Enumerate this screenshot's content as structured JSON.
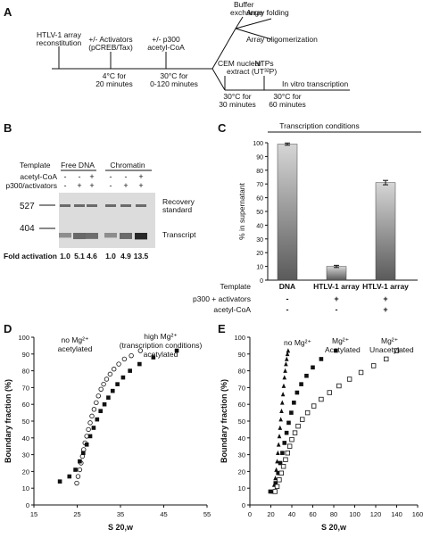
{
  "panel_a": {
    "letter": "A",
    "step_reconstitution": [
      "HTLV-1 array",
      "reconstitution"
    ],
    "step_activators": [
      "+/- Activators",
      "(pCREB/Tax)"
    ],
    "step_p300": [
      "+/- p300",
      "acetyl-CoA"
    ],
    "incubation_1": [
      "4°C for",
      "20 minutes"
    ],
    "incubation_2": [
      "30°C for",
      "0-120 minutes"
    ],
    "branch_buffer": [
      "Buffer",
      "exchange"
    ],
    "branch_folding": "Array folding",
    "branch_oligomerization": "Array oligomerization",
    "branch_cem": [
      "CEM nuclear",
      "extract"
    ],
    "branch_ntps": [
      "NTPs",
      "(UT³²P)"
    ],
    "incubation_3": [
      "30°C for",
      "30 minutes"
    ],
    "incubation_4": [
      "30°C for",
      "60 minutes"
    ],
    "branch_transcription": "In vitro transcription"
  },
  "panel_b": {
    "letter": "B",
    "template_label": "Template",
    "group_free_dna": "Free DNA",
    "group_chromatin": "Chromatin",
    "row_acetyl": "acetyl-CoA",
    "row_p300": "p300/activators",
    "acetyl_signs": [
      "-",
      "-",
      "+",
      "-",
      "-",
      "+"
    ],
    "p300_signs": [
      "-",
      "+",
      "+",
      "-",
      "+",
      "+"
    ],
    "marker_527": "527",
    "marker_404": "404",
    "label_recovery": [
      "Recovery",
      "standard"
    ],
    "label_transcript": "Transcript",
    "fold_label": "Fold activation",
    "fold_values": [
      "1.0",
      "5.1",
      "4.6",
      "1.0",
      "4.9",
      "13.5"
    ]
  },
  "panel_c": {
    "letter": "C",
    "header": "Transcription conditions",
    "template_label": "Template",
    "p300_label": "p300 + activators",
    "acetyl_label": "acetyl-CoA",
    "row_p300": [
      "-",
      "+",
      "+"
    ],
    "row_acetyl": [
      "-",
      "-",
      "+"
    ]
  },
  "panel_d": {
    "letter": "D",
    "annot_left": [
      "no Mg²⁺",
      "acetylated"
    ],
    "annot_right": [
      "high Mg²⁺",
      "(transcription conditions)",
      "acetylated"
    ]
  },
  "panel_e": {
    "letter": "E",
    "annot_nomg": "no Mg²⁺",
    "annot_acet": [
      "Mg²⁺",
      "Acetylated"
    ],
    "annot_unacet": [
      "Mg²⁺",
      "Unacetylated"
    ]
  },
  "chart_data": [
    {
      "type": "bar",
      "panel": "C",
      "categories": [
        "DNA",
        "HTLV-1 array",
        "HTLV-1 array"
      ],
      "values": [
        99,
        10,
        71
      ],
      "errors": [
        0.8,
        0.8,
        1.6
      ],
      "ylabel": "% in supernatant",
      "ylim": [
        0,
        100
      ],
      "yticks": [
        0,
        10,
        20,
        30,
        40,
        50,
        60,
        70,
        80,
        90,
        100
      ]
    },
    {
      "type": "scatter",
      "panel": "D",
      "xlabel": "S 20,w",
      "ylabel": "Boundary fraction (%)",
      "xlim": [
        15,
        55
      ],
      "ylim": [
        0,
        100
      ],
      "xticks": [
        15,
        25,
        35,
        45,
        55
      ],
      "yticks": [
        0,
        10,
        20,
        30,
        40,
        50,
        60,
        70,
        80,
        90,
        100
      ],
      "series": [
        {
          "marker": "open-circle",
          "x": [
            24.9,
            25.2,
            25.6,
            25.9,
            26.2,
            26.5,
            26.8,
            27.2,
            27.6,
            28.0,
            28.4,
            28.9,
            29.4,
            29.9,
            30.5,
            31.1,
            31.8,
            32.6,
            33.5,
            34.6,
            35.9,
            37.5,
            39.6
          ],
          "y": [
            13,
            17,
            21,
            25,
            29,
            33,
            37,
            41,
            45,
            49,
            53,
            57,
            61,
            65,
            69,
            72,
            75,
            78,
            81,
            84,
            87,
            89,
            92
          ]
        },
        {
          "marker": "filled-square",
          "x": [
            21.0,
            23.2,
            24.6,
            25.6,
            26.4,
            27.2,
            28.0,
            28.8,
            29.6,
            30.4,
            31.3,
            32.2,
            33.2,
            34.3,
            35.6,
            37.2,
            39.4,
            42.6,
            48.0
          ],
          "y": [
            14,
            17,
            21,
            26,
            31,
            36,
            41,
            46,
            51,
            56,
            60,
            64,
            68,
            72,
            76,
            80,
            84,
            88,
            92
          ]
        }
      ]
    },
    {
      "type": "scatter",
      "panel": "E",
      "xlabel": "S 20,w",
      "ylabel": "Boundary fraction (%)",
      "xlim": [
        0,
        160
      ],
      "ylim": [
        0,
        100
      ],
      "xticks": [
        0,
        20,
        40,
        60,
        80,
        100,
        120,
        140,
        160
      ],
      "yticks": [
        0,
        10,
        20,
        30,
        40,
        50,
        60,
        70,
        80,
        90,
        100
      ],
      "series": [
        {
          "marker": "filled-triangle",
          "x": [
            22.0,
            23.2,
            24.3,
            25.2,
            26.0,
            26.7,
            27.4,
            28.1,
            28.8,
            29.5,
            30.2,
            30.9,
            31.6,
            32.3,
            33.0,
            33.7,
            34.4,
            35.1,
            35.8,
            36.5
          ],
          "y": [
            8,
            12,
            16,
            21,
            26,
            31,
            36,
            41,
            46,
            51,
            56,
            61,
            66,
            71,
            76,
            80,
            84,
            87,
            90,
            92
          ]
        },
        {
          "marker": "filled-square",
          "x": [
            19.5,
            24.5,
            27.0,
            29.0,
            31.0,
            33.0,
            35.0,
            37.0,
            39.5,
            42.0,
            45.0,
            49.0,
            54.0,
            60.0,
            68.0,
            82.0
          ],
          "y": [
            8,
            13,
            19,
            25,
            31,
            37,
            43,
            49,
            55,
            61,
            67,
            72,
            77,
            82,
            87,
            92
          ]
        },
        {
          "marker": "open-square",
          "x": [
            24,
            26,
            28,
            30,
            32,
            34,
            36,
            38,
            40,
            43,
            46,
            50,
            55,
            61,
            68,
            76,
            85,
            95,
            106,
            118,
            130,
            140
          ],
          "y": [
            8,
            11,
            15,
            19,
            23,
            27,
            31,
            35,
            39,
            43,
            47,
            51,
            55,
            59,
            63,
            67,
            71,
            75,
            79,
            83,
            87,
            92
          ]
        }
      ]
    }
  ]
}
